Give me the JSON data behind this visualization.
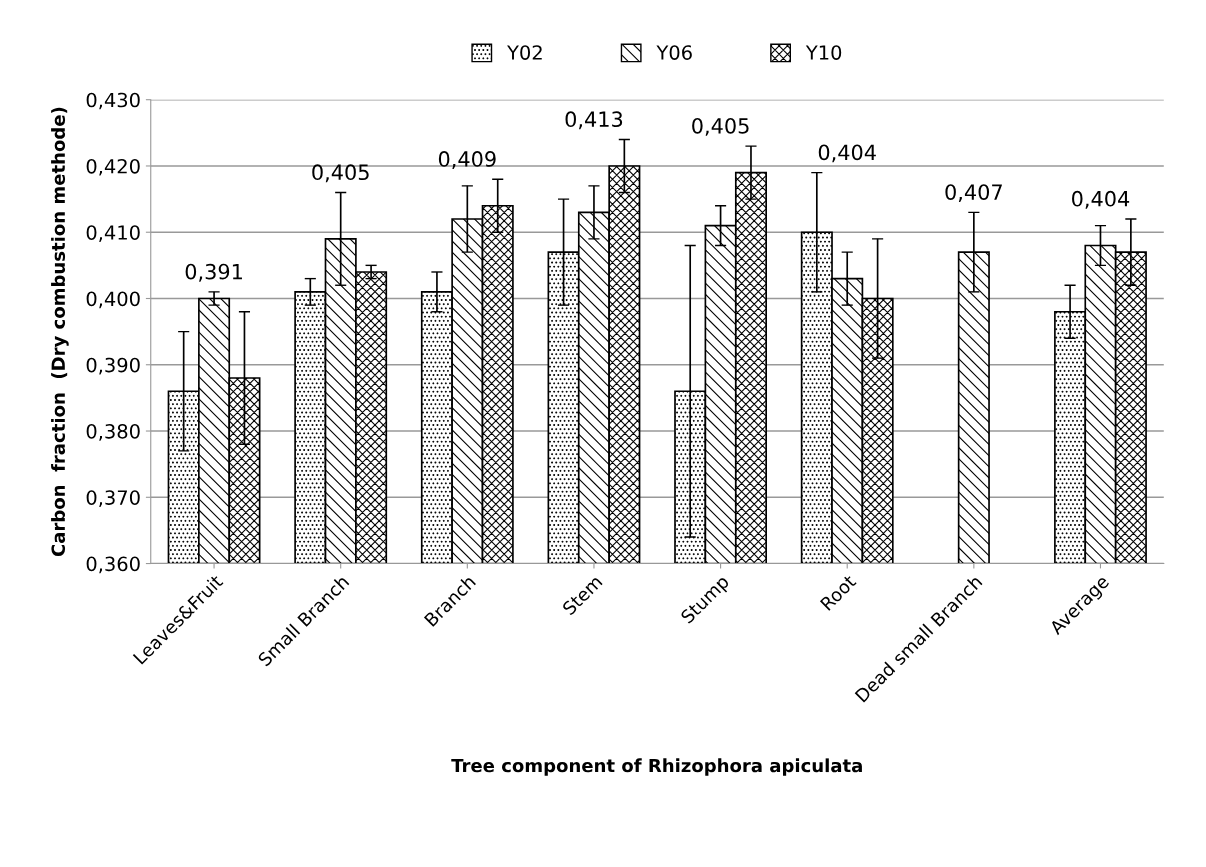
{
  "chart_data": {
    "type": "bar",
    "xlabel": "Tree component of Rhizophora apiculata",
    "ylabel": "Carbon  fraction  (Dry combustion methode)",
    "categories": [
      "Leaves&Fruit",
      "Small Branch",
      "Branch",
      "Stem",
      "Stump",
      "Root",
      "Dead small Branch",
      "Average"
    ],
    "series": [
      {
        "name": "Y02",
        "color": "#000000",
        "values": [
          0.386,
          0.401,
          0.401,
          0.407,
          0.386,
          0.41,
          null,
          0.398
        ],
        "errors": [
          0.009,
          0.002,
          0.003,
          0.008,
          0.022,
          0.009,
          null,
          0.004
        ]
      },
      {
        "name": "Y06",
        "color": "#000000",
        "values": [
          0.4,
          0.409,
          0.412,
          0.413,
          0.411,
          0.403,
          0.407,
          0.408
        ],
        "errors": [
          0.001,
          0.007,
          0.005,
          0.004,
          0.003,
          0.004,
          0.006,
          0.003
        ]
      },
      {
        "name": "Y10",
        "color": "#000000",
        "values": [
          0.388,
          0.404,
          0.414,
          0.42,
          0.419,
          0.4,
          null,
          0.407
        ],
        "errors": [
          0.01,
          0.001,
          0.004,
          0.004,
          0.004,
          0.009,
          null,
          0.005
        ]
      }
    ],
    "ylim": [
      0.36,
      0.43
    ],
    "yticks": [
      {
        "value": 0.36,
        "label": "0,360"
      },
      {
        "value": 0.37,
        "label": "0,370"
      },
      {
        "value": 0.38,
        "label": "0,380"
      },
      {
        "value": 0.39,
        "label": "0,390"
      },
      {
        "value": 0.4,
        "label": "0,400"
      },
      {
        "value": 0.41,
        "label": "0,410"
      },
      {
        "value": 0.42,
        "label": "0,420"
      },
      {
        "value": 0.43,
        "label": "0,430"
      }
    ],
    "annotations": [
      "0,391",
      "0,405",
      "0,409",
      "0,413",
      "0,405",
      "0,404",
      "0,407",
      "0,404"
    ],
    "grid": "y",
    "legend": "top"
  }
}
